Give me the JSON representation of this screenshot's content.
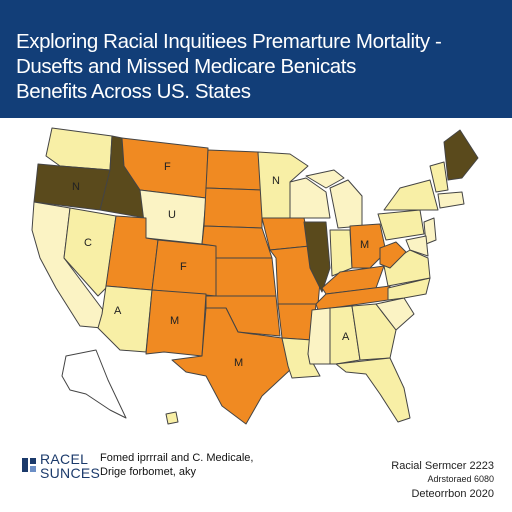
{
  "title": {
    "line1": "Exploring Racial Inquitiees Premarture Mortality -",
    "line2": "Dusefts and Missed Medicare Benicats",
    "line3": "Benefits Across US. States"
  },
  "colors": {
    "header_bg": "#123e78",
    "header_text": "#ffffff",
    "dark_olive": "#5a4a1c",
    "orange": "#f08a22",
    "dark_orange": "#e8701a",
    "light_yellow": "#f8efa6",
    "pale_yellow": "#fbf3c4",
    "border": "#555555"
  },
  "map": {
    "state_labels": [
      "N",
      "U",
      "F",
      "M",
      "C",
      "F",
      "A",
      "M",
      "N",
      "A",
      "M"
    ]
  },
  "footer": {
    "logo_line1": "RACEL",
    "logo_line2": "SUNCES",
    "note_line1": "Fomed iprrrail and C. Medicale,",
    "note_line2": "Drige forbomet, aky",
    "right_line1": "Racial Sermcer 2223",
    "right_line2": "Adrstoraed 6080",
    "right_line3": "Deteorrbon 2020"
  }
}
